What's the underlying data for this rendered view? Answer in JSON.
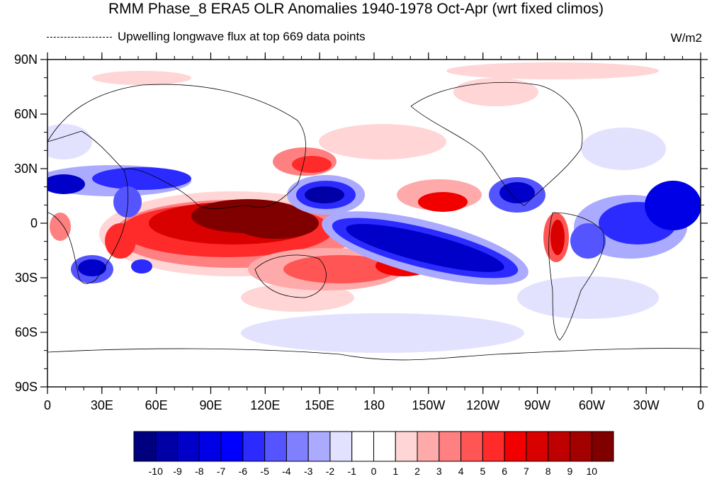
{
  "header": {
    "title": "RMM Phase_8 ERA5 OLR Anomalies 1940-1978 Oct-Apr (wrt fixed climos)",
    "legend_text": "Upwelling longwave flux at top   669 data points",
    "units": "W/m2"
  },
  "map": {
    "lat_ticks": [
      "90N",
      "60N",
      "30N",
      "0",
      "30S",
      "60S",
      "90S"
    ],
    "lon_ticks": [
      "0",
      "30E",
      "60E",
      "90E",
      "120E",
      "150E",
      "180",
      "150W",
      "120W",
      "90W",
      "60W",
      "30W",
      "0"
    ],
    "projection": "cylindrical equidistant",
    "lon_range": [
      0,
      360
    ],
    "lat_range": [
      -90,
      90
    ]
  },
  "colorbar": {
    "labels": [
      "-10",
      "-9",
      "-8",
      "-7",
      "-6",
      "-5",
      "-4",
      "-3",
      "-2",
      "-1",
      "0",
      "1",
      "2",
      "3",
      "4",
      "5",
      "6",
      "7",
      "8",
      "9",
      "10"
    ],
    "colors": [
      "#00007f",
      "#0000a6",
      "#0000c9",
      "#0000e6",
      "#0000ff",
      "#2b2bff",
      "#5555ff",
      "#8080ff",
      "#aaaaff",
      "#e2e2ff",
      "#ffffff",
      "#ffffff",
      "#ffd5d5",
      "#ffaaaa",
      "#ff8080",
      "#ff5555",
      "#ff2b2b",
      "#f20000",
      "#d90000",
      "#bf0000",
      "#a30000",
      "#800000"
    ]
  },
  "chart_data": {
    "type": "heatmap",
    "title": "RMM Phase_8 ERA5 OLR Anomalies 1940-1978 Oct-Apr (wrt fixed climos)",
    "variable": "Upwelling longwave flux at top",
    "n_points": 669,
    "units": "W/m2",
    "levels": [
      -10,
      -9,
      -8,
      -7,
      -6,
      -5,
      -4,
      -3,
      -2,
      -1,
      0,
      1,
      2,
      3,
      4,
      5,
      6,
      7,
      8,
      9,
      10
    ],
    "anomaly_centers": [
      {
        "lon": 100,
        "lat": -5,
        "value": 10
      },
      {
        "lon": 55,
        "lat": -7,
        "value": 6
      },
      {
        "lon": 125,
        "lat": 5,
        "value": 10
      },
      {
        "lon": 140,
        "lat": 30,
        "value": 6
      },
      {
        "lon": 150,
        "lat": -25,
        "value": 7
      },
      {
        "lon": 195,
        "lat": -20,
        "value": 7
      },
      {
        "lon": 220,
        "lat": 10,
        "value": 7
      },
      {
        "lon": 282,
        "lat": -5,
        "value": 8
      },
      {
        "lon": 163,
        "lat": 16,
        "value": -10
      },
      {
        "lon": 215,
        "lat": -8,
        "value": -10
      },
      {
        "lon": 245,
        "lat": -22,
        "value": -8
      },
      {
        "lon": 262,
        "lat": 17,
        "value": -8
      },
      {
        "lon": 340,
        "lat": 0,
        "value": -9
      },
      {
        "lon": 307,
        "lat": -12,
        "value": -7
      },
      {
        "lon": 65,
        "lat": 25,
        "value": -8
      },
      {
        "lon": 18,
        "lat": 20,
        "value": -7
      },
      {
        "lon": 22,
        "lat": -23,
        "value": -7
      },
      {
        "lon": 48,
        "lat": -24,
        "value": -6
      }
    ]
  }
}
